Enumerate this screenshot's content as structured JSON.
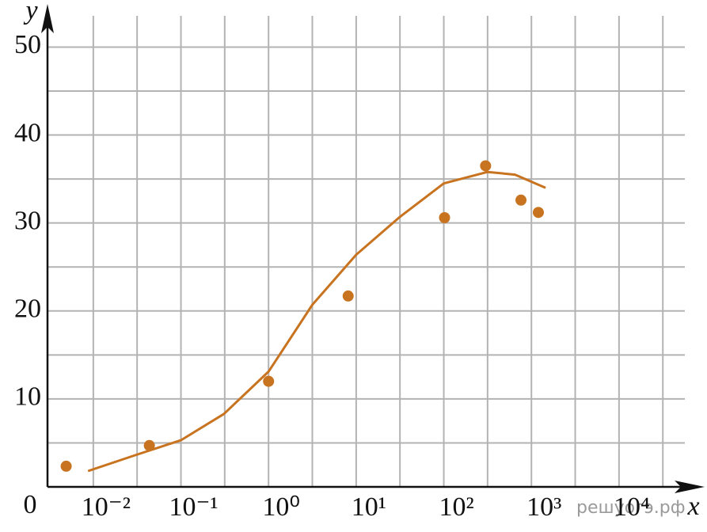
{
  "chart_data": {
    "type": "scatter",
    "x_label": "x",
    "y_label": "y",
    "watermark": "решуогэ.рф",
    "xscale": "log",
    "xlim": [
      0.003,
      60000
    ],
    "ylim": [
      0,
      54
    ],
    "xticks": [
      {
        "value": 0.01,
        "label": "10⁻²"
      },
      {
        "value": 0.1,
        "label": "10⁻¹"
      },
      {
        "value": 1,
        "label": "10⁰"
      },
      {
        "value": 10,
        "label": "10¹"
      },
      {
        "value": 100,
        "label": "10²"
      },
      {
        "value": 1000,
        "label": "10³"
      },
      {
        "value": 10000,
        "label": "10⁴"
      }
    ],
    "xgrid": [
      0.0316,
      0.316,
      3.16,
      31.6,
      316,
      3162,
      31623
    ],
    "yticks": [
      0,
      10,
      20,
      30,
      40,
      50
    ],
    "ygrid": [
      5,
      15,
      25,
      35,
      45
    ],
    "grid": true,
    "series": [
      {
        "type": "scatter",
        "color": "#c8731f",
        "x": [
          0.0049,
          0.0436,
          1.0,
          8.1,
          102,
          300,
          760,
          1200
        ],
        "values": [
          2.35,
          4.7,
          12.0,
          21.7,
          30.6,
          36.5,
          32.6,
          31.2
        ]
      },
      {
        "type": "line",
        "color": "#c8731f",
        "x": [
          0.0087,
          0.03,
          0.1,
          0.31,
          1,
          3.16,
          10,
          31.6,
          100,
          316,
          650,
          1450
        ],
        "values": [
          1.8,
          3.6,
          5.3,
          8.3,
          13.1,
          20.7,
          26.4,
          30.7,
          34.5,
          35.8,
          35.5,
          34.0
        ]
      }
    ]
  }
}
